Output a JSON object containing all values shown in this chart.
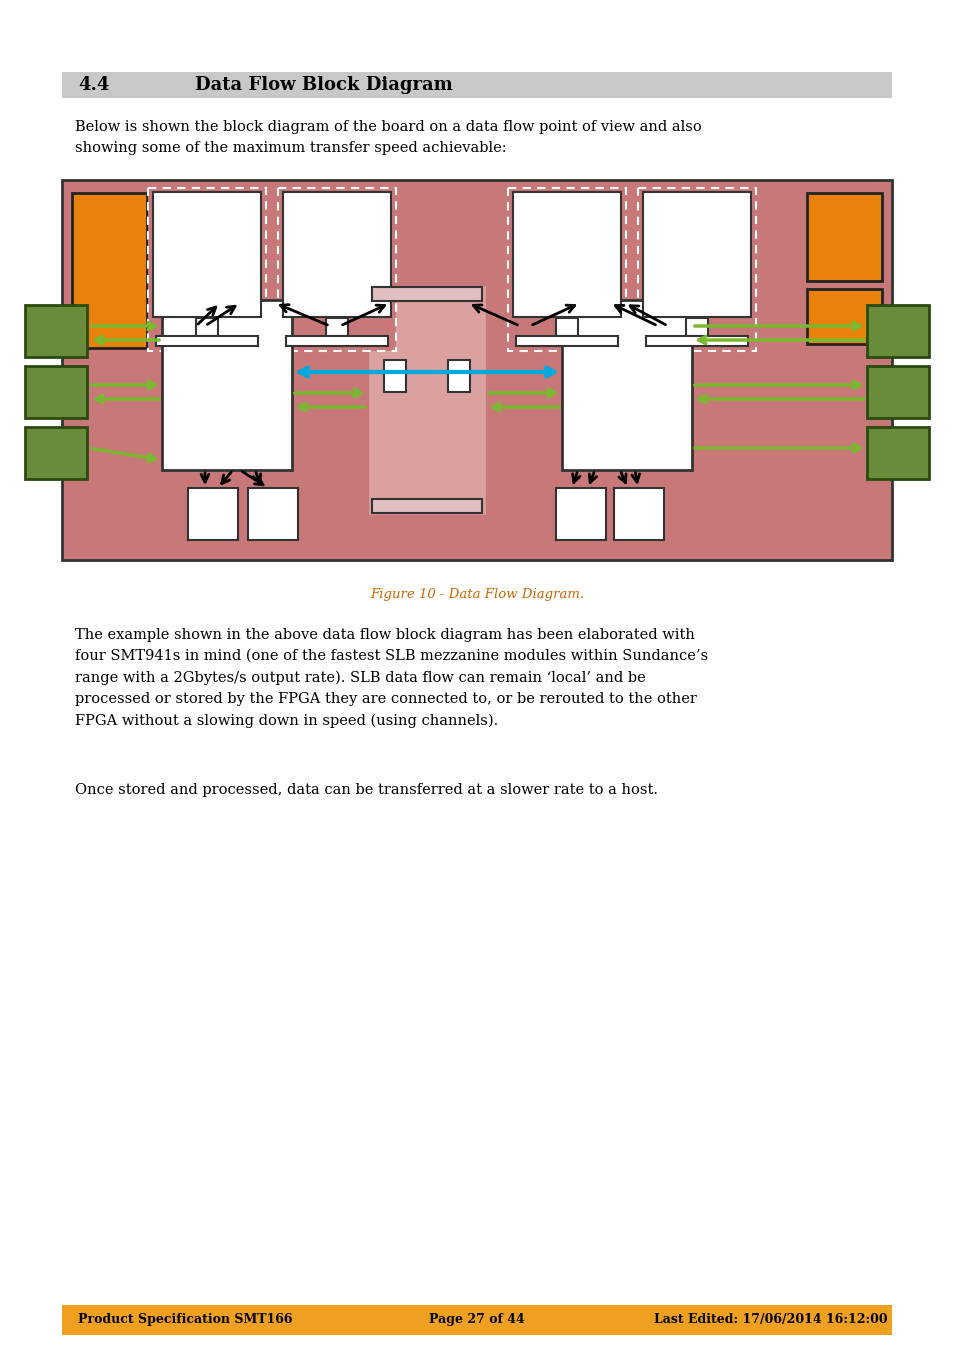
{
  "page_bg": "#ffffff",
  "header_bg": "#c8c8c8",
  "header_number": "4.4",
  "header_title": "Data Flow Block Diagram",
  "intro_text": "Below is shown the block diagram of the board on a data flow point of view and also\nshowing some of the maximum transfer speed achievable:",
  "diagram_bg": "#c87878",
  "diagram_border": "#333333",
  "orange_color": "#e8820a",
  "green_color": "#6a8c3a",
  "white_box": "#ffffff",
  "light_pink": "#dba0a0",
  "blue_arrow": "#00aadd",
  "green_arrow": "#7ab830",
  "black_arrow": "#000000",
  "caption": "Figure 10 - Data Flow Diagram.",
  "caption_color": "#cc6600",
  "body_text1": "The example shown in the above data flow block diagram has been elaborated with\nfour SMT941s in mind (one of the fastest SLB mezzanine modules within Sundance’s\nrange with a 2Gbytes/s output rate). SLB data flow can remain ‘local’ and be\nprocessed or stored by the FPGA they are connected to, or be rerouted to the other\nFPGA without a slowing down in speed (using channels).",
  "body_text2": "Once stored and processed, data can be transferred at a slower rate to a host.",
  "footer_bg": "#f0a020",
  "footer_left": "Product Specification SMT166",
  "footer_center": "Page 27 of 44",
  "footer_right": "Last Edited: 17/06/2014 16:12:00"
}
